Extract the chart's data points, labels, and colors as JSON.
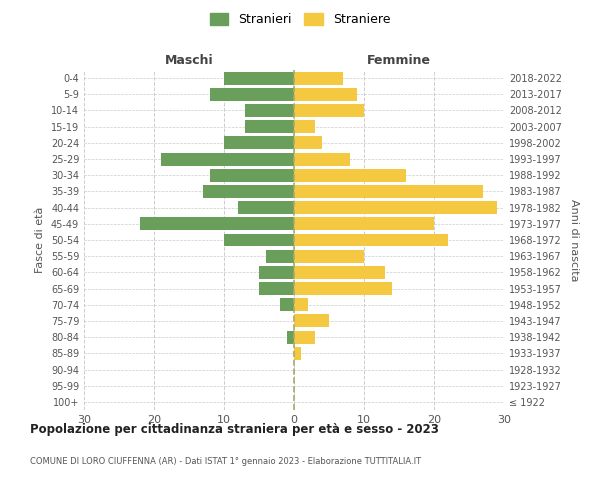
{
  "age_groups": [
    "100+",
    "95-99",
    "90-94",
    "85-89",
    "80-84",
    "75-79",
    "70-74",
    "65-69",
    "60-64",
    "55-59",
    "50-54",
    "45-49",
    "40-44",
    "35-39",
    "30-34",
    "25-29",
    "20-24",
    "15-19",
    "10-14",
    "5-9",
    "0-4"
  ],
  "birth_years": [
    "≤ 1922",
    "1923-1927",
    "1928-1932",
    "1933-1937",
    "1938-1942",
    "1943-1947",
    "1948-1952",
    "1953-1957",
    "1958-1962",
    "1963-1967",
    "1968-1972",
    "1973-1977",
    "1978-1982",
    "1983-1987",
    "1988-1992",
    "1993-1997",
    "1998-2002",
    "2003-2007",
    "2008-2012",
    "2013-2017",
    "2018-2022"
  ],
  "males": [
    0,
    0,
    0,
    0,
    1,
    0,
    2,
    5,
    5,
    4,
    10,
    22,
    8,
    13,
    12,
    19,
    10,
    7,
    7,
    12,
    10
  ],
  "females": [
    0,
    0,
    0,
    1,
    3,
    5,
    2,
    14,
    13,
    10,
    22,
    20,
    29,
    27,
    16,
    8,
    4,
    3,
    10,
    9,
    7
  ],
  "male_color": "#6a9e5b",
  "female_color": "#f5c842",
  "background_color": "#ffffff",
  "grid_color": "#cccccc",
  "title": "Popolazione per cittadinanza straniera per età e sesso - 2023",
  "subtitle": "COMUNE DI LORO CIUFFENNA (AR) - Dati ISTAT 1° gennaio 2023 - Elaborazione TUTTITALIA.IT",
  "xlabel_left": "Maschi",
  "xlabel_right": "Femmine",
  "ylabel_left": "Fasce di età",
  "ylabel_right": "Anni di nascita",
  "legend_male": "Stranieri",
  "legend_female": "Straniere",
  "xlim": 30,
  "bar_height": 0.8
}
